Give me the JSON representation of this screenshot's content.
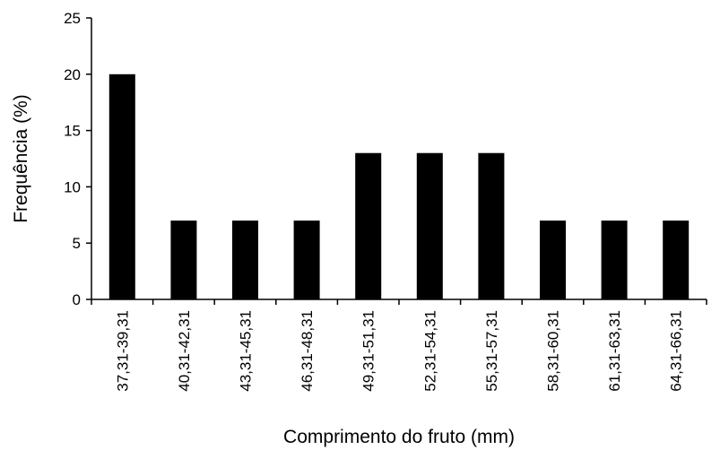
{
  "chart_data": {
    "type": "bar",
    "categories": [
      "37,31-39,31",
      "40,31-42,31",
      "43,31-45,31",
      "46,31-48,31",
      "49,31-51,31",
      "52,31-54,31",
      "55,31-57,31",
      "58,31-60,31",
      "61,31-63,31",
      "64,31-66,31"
    ],
    "values": [
      20,
      7,
      7,
      7,
      13,
      13,
      13,
      7,
      7,
      7
    ],
    "title": "",
    "xlabel": "Comprimento do fruto (mm)",
    "ylabel": "Frequência (%)",
    "ylim": [
      0,
      25
    ],
    "yticks": [
      0,
      5,
      10,
      15,
      20,
      25
    ],
    "grid": false,
    "legend": "none",
    "bar_color": "#000000",
    "axis_color": "#000000"
  }
}
